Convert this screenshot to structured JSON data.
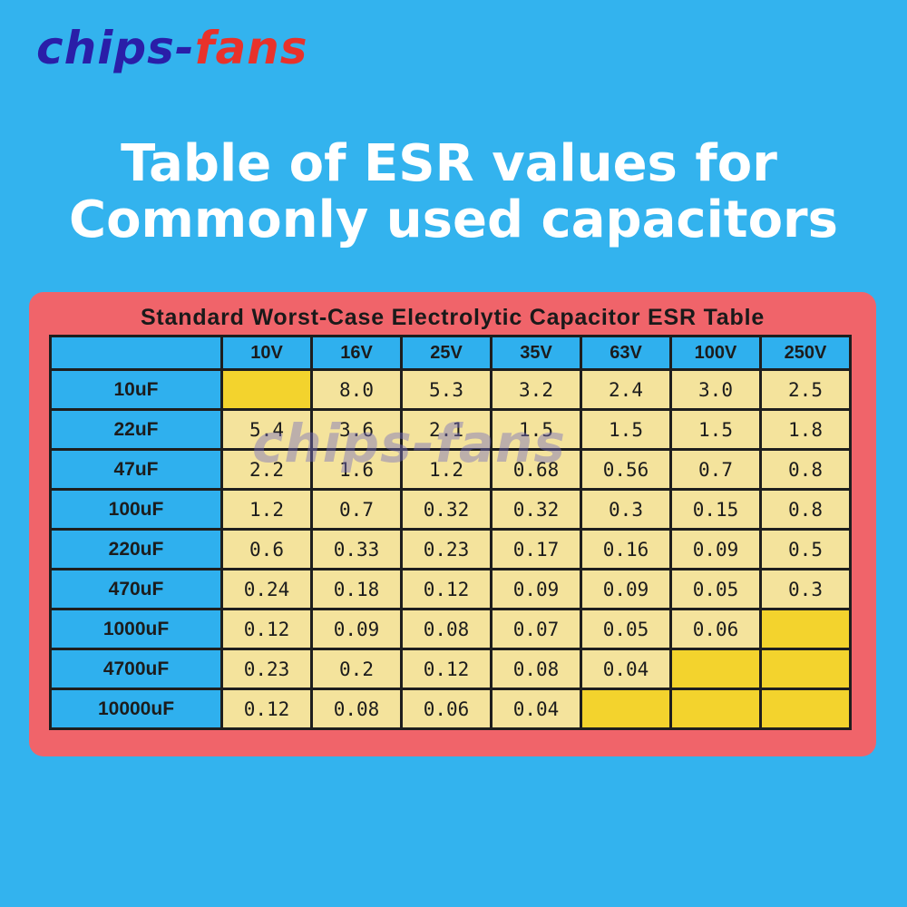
{
  "brand": {
    "part1": "chips-",
    "part2": "fans",
    "watermark": "chips-fans"
  },
  "headline": {
    "line1": "Table of ESR values for",
    "line2": "Commonly used capacitors"
  },
  "table": {
    "title": "Standard Worst-Case Electrolytic Capacitor ESR Table",
    "voltages": [
      "10V",
      "16V",
      "25V",
      "35V",
      "63V",
      "100V",
      "250V"
    ],
    "rows": [
      {
        "cap": "10uF",
        "values": [
          "",
          "8.0",
          "5.3",
          "3.2",
          "2.4",
          "3.0",
          "2.5"
        ]
      },
      {
        "cap": "22uF",
        "values": [
          "5.4",
          "3.6",
          "2.1",
          "1.5",
          "1.5",
          "1.5",
          "1.8"
        ]
      },
      {
        "cap": "47uF",
        "values": [
          "2.2",
          "1.6",
          "1.2",
          "0.68",
          "0.56",
          "0.7",
          "0.8"
        ]
      },
      {
        "cap": "100uF",
        "values": [
          "1.2",
          "0.7",
          "0.32",
          "0.32",
          "0.3",
          "0.15",
          "0.8"
        ]
      },
      {
        "cap": "220uF",
        "values": [
          "0.6",
          "0.33",
          "0.23",
          "0.17",
          "0.16",
          "0.09",
          "0.5"
        ]
      },
      {
        "cap": "470uF",
        "values": [
          "0.24",
          "0.18",
          "0.12",
          "0.09",
          "0.09",
          "0.05",
          "0.3"
        ]
      },
      {
        "cap": "1000uF",
        "values": [
          "0.12",
          "0.09",
          "0.08",
          "0.07",
          "0.05",
          "0.06",
          ""
        ]
      },
      {
        "cap": "4700uF",
        "values": [
          "0.23",
          "0.2",
          "0.12",
          "0.08",
          "0.04",
          "",
          ""
        ]
      },
      {
        "cap": "10000uF",
        "values": [
          "0.12",
          "0.08",
          "0.06",
          "0.04",
          "",
          "",
          ""
        ]
      }
    ]
  },
  "colors": {
    "background": "#33b3ee",
    "card": "#f0646a",
    "cell": "#f4e39c",
    "empty_cell": "#f3d32d",
    "header_cell": "#2fb0ee",
    "logo_blue": "#2a1ea8",
    "logo_red": "#e8322b"
  }
}
